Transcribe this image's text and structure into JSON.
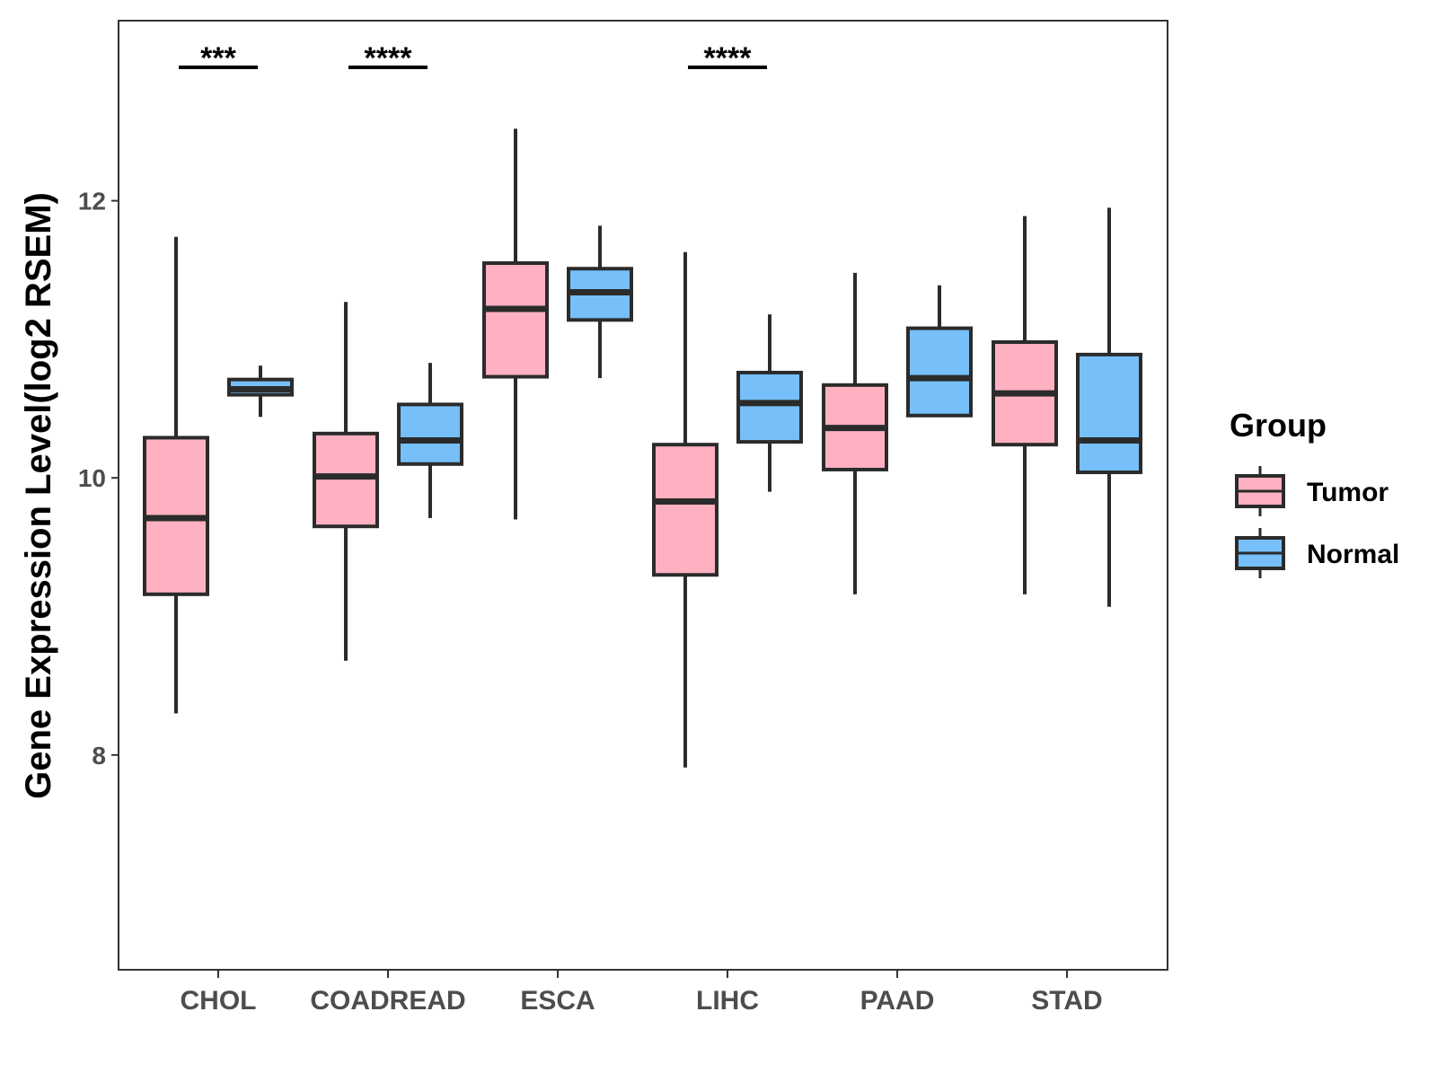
{
  "chart_data": {
    "type": "boxplot",
    "title": "",
    "xlabel": "",
    "ylabel": "Gene Expression Level(log2 RSEM)",
    "ylim": [
      6.45,
      13.3
    ],
    "yticks": [
      8,
      10,
      12
    ],
    "grid": false,
    "legend": {
      "title": "Group",
      "position": "right"
    },
    "categories": [
      "CHOL",
      "COADREAD",
      "ESCA",
      "LIHC",
      "PAAD",
      "STAD"
    ],
    "series": [
      {
        "name": "Tumor",
        "color": "#FFB1C1",
        "boxes": [
          {
            "category": "CHOL",
            "whisker_low": 8.3,
            "q1": 9.16,
            "median": 9.71,
            "q3": 10.29,
            "whisker_high": 11.74
          },
          {
            "category": "COADREAD",
            "whisker_low": 8.68,
            "q1": 9.65,
            "median": 10.01,
            "q3": 10.32,
            "whisker_high": 11.27
          },
          {
            "category": "ESCA",
            "whisker_low": 9.7,
            "q1": 10.73,
            "median": 11.22,
            "q3": 11.55,
            "whisker_high": 12.52
          },
          {
            "category": "LIHC",
            "whisker_low": 7.91,
            "q1": 9.3,
            "median": 9.83,
            "q3": 10.24,
            "whisker_high": 11.63
          },
          {
            "category": "PAAD",
            "whisker_low": 9.16,
            "q1": 10.06,
            "median": 10.36,
            "q3": 10.67,
            "whisker_high": 11.48
          },
          {
            "category": "STAD",
            "whisker_low": 9.16,
            "q1": 10.24,
            "median": 10.61,
            "q3": 10.98,
            "whisker_high": 11.89
          }
        ]
      },
      {
        "name": "Normal",
        "color": "#76BFF8",
        "boxes": [
          {
            "category": "CHOL",
            "whisker_low": 10.44,
            "q1": 10.6,
            "median": 10.64,
            "q3": 10.71,
            "whisker_high": 10.81
          },
          {
            "category": "COADREAD",
            "whisker_low": 9.71,
            "q1": 10.1,
            "median": 10.27,
            "q3": 10.53,
            "whisker_high": 10.83
          },
          {
            "category": "ESCA",
            "whisker_low": 10.72,
            "q1": 11.14,
            "median": 11.34,
            "q3": 11.51,
            "whisker_high": 11.82
          },
          {
            "category": "LIHC",
            "whisker_low": 9.9,
            "q1": 10.26,
            "median": 10.54,
            "q3": 10.76,
            "whisker_high": 11.18
          },
          {
            "category": "PAAD",
            "whisker_low": 10.44,
            "q1": 10.45,
            "median": 10.72,
            "q3": 11.08,
            "whisker_high": 11.39
          },
          {
            "category": "STAD",
            "whisker_low": 9.07,
            "q1": 10.04,
            "median": 10.27,
            "q3": 10.89,
            "whisker_high": 11.95
          }
        ]
      }
    ],
    "annotations": [
      {
        "category": "CHOL",
        "label": "***"
      },
      {
        "category": "COADREAD",
        "label": "****"
      },
      {
        "category": "LIHC",
        "label": "****"
      }
    ]
  }
}
